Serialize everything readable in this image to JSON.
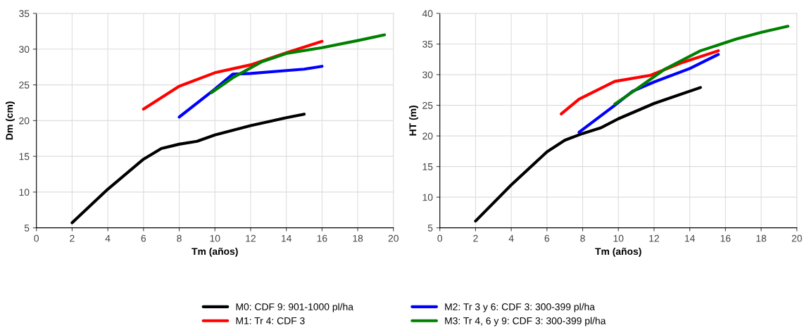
{
  "chart_data": [
    {
      "type": "line",
      "xlabel": "Tm (años)",
      "ylabel": "Dm (cm)",
      "xlim": [
        0,
        20
      ],
      "ylim": [
        5,
        35
      ],
      "xticks": [
        0,
        2,
        4,
        6,
        8,
        10,
        12,
        14,
        16,
        18,
        20
      ],
      "yticks": [
        5,
        10,
        15,
        20,
        25,
        30,
        35
      ],
      "grid": true,
      "legend": "bottom",
      "line_style": "solid",
      "marker": "none",
      "series": [
        {
          "name": "M0: CDF 9: 901-1000 pl/ha",
          "color": "#000000",
          "x": [
            2,
            4,
            6,
            7,
            8,
            9,
            10,
            12,
            14,
            15
          ],
          "values": [
            5.7,
            10.4,
            14.6,
            16.1,
            16.7,
            17.1,
            18,
            19.3,
            20.4,
            20.9
          ]
        },
        {
          "name": "M1: Tr 4: CDF 3",
          "color": "#ff0000",
          "x": [
            6,
            8,
            10,
            12,
            14,
            16
          ],
          "values": [
            21.6,
            24.8,
            26.7,
            27.8,
            29.5,
            31.1
          ]
        },
        {
          "name": "M2: Tr 3 y 6: CDF 3: 300-399 pl/ha",
          "color": "#0000ff",
          "x": [
            8,
            10,
            11,
            12,
            14,
            15,
            16
          ],
          "values": [
            20.5,
            24.4,
            26.5,
            26.6,
            27,
            27.2,
            27.6
          ]
        },
        {
          "name": "M3: Tr 4, 6 y 9: CDF 3: 300-399 pl/ha",
          "color": "#008000",
          "x": [
            9.8,
            11,
            12.6,
            14,
            16,
            18,
            19.5
          ],
          "values": [
            23.9,
            26,
            28.2,
            29.4,
            30.2,
            31.2,
            32
          ]
        }
      ]
    },
    {
      "type": "line",
      "xlabel": "Tm (años)",
      "ylabel": "HT (m)",
      "xlim": [
        0,
        20
      ],
      "ylim": [
        5,
        40
      ],
      "xticks": [
        0,
        2,
        4,
        6,
        8,
        10,
        12,
        14,
        16,
        18,
        20
      ],
      "yticks": [
        5,
        10,
        15,
        20,
        25,
        30,
        35,
        40
      ],
      "grid": true,
      "line_style": "solid",
      "marker": "none",
      "series": [
        {
          "color": "#000000",
          "x": [
            2,
            4,
            6,
            7,
            8,
            9,
            10,
            12,
            13,
            14.6
          ],
          "values": [
            6.1,
            12,
            17.4,
            19.3,
            20.4,
            21.3,
            22.8,
            25.3,
            26.3,
            27.9
          ]
        },
        {
          "color": "#ff0000",
          "x": [
            6.8,
            7.8,
            9.8,
            11.8,
            13.6,
            15.6
          ],
          "values": [
            23.6,
            26,
            28.9,
            29.9,
            32,
            33.9
          ]
        },
        {
          "color": "#0000ff",
          "x": [
            7.8,
            9.8,
            10.8,
            12,
            14,
            15.6
          ],
          "values": [
            20.6,
            25,
            27.3,
            28.8,
            31,
            33.3
          ]
        },
        {
          "color": "#008000",
          "x": [
            9.8,
            11,
            12.6,
            14.6,
            16.6,
            18,
            19.5
          ],
          "values": [
            25.2,
            27.6,
            30.9,
            33.9,
            35.8,
            36.9,
            37.9
          ]
        }
      ]
    }
  ]
}
